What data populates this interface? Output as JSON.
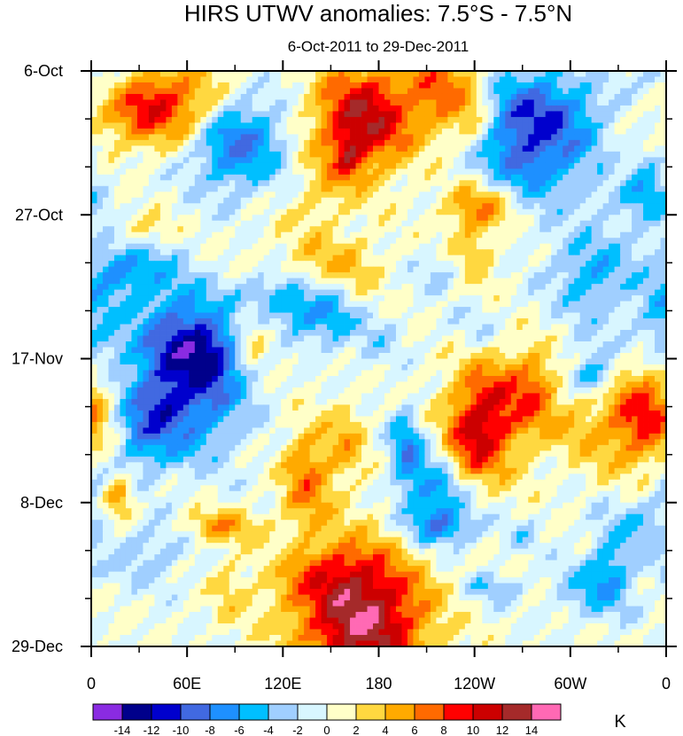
{
  "chart_data": {
    "type": "heatmap",
    "title": "HIRS UTWV anomalies: 7.5°S - 7.5°N",
    "subtitle": "6-Oct-2011 to 29-Dec-2011",
    "xlabel": "",
    "ylabel": "",
    "x_ticks": [
      "0",
      "60E",
      "120E",
      "180",
      "120W",
      "60W",
      "0"
    ],
    "x_tick_degrees": [
      0,
      60,
      120,
      180,
      240,
      300,
      360
    ],
    "y_ticks": [
      "6-Oct",
      "27-Oct",
      "17-Nov",
      "8-Dec",
      "29-Dec"
    ],
    "y_tick_days": [
      0,
      21,
      42,
      63,
      84
    ],
    "xlim": [
      0,
      360
    ],
    "ylim_days": [
      0,
      84
    ],
    "colorbar": {
      "unit": "K",
      "levels": [
        -14,
        -12,
        -10,
        -8,
        -6,
        -4,
        -2,
        0,
        2,
        4,
        6,
        8,
        10,
        12,
        14
      ],
      "level_labels": [
        "-14",
        "-12",
        "-10",
        "-8",
        "-6",
        "-4",
        "-2",
        "0",
        "2",
        "4",
        "6",
        "8",
        "10",
        "12",
        "14"
      ],
      "colors": [
        "#8a2be2",
        "#00008b",
        "#0000cd",
        "#4169e1",
        "#1e90ff",
        "#00bfff",
        "#a0cfff",
        "#d8f6ff",
        "#ffffc8",
        "#ffd840",
        "#ffaa00",
        "#ff6a00",
        "#ff0000",
        "#cc0000",
        "#a52a2a",
        "#ff69b4"
      ]
    },
    "features": [
      {
        "lon": 90,
        "day": 10,
        "amp": -9,
        "label": "negative anomaly west Indian Ocean, early Oct"
      },
      {
        "lon": 44,
        "day": 5,
        "amp": 10,
        "label": "positive anomaly near 40E, early Oct"
      },
      {
        "lon": 170,
        "day": 7,
        "amp": 12,
        "label": "positive anomaly near date line, Oct"
      },
      {
        "lon": 280,
        "day": 8,
        "amp": -11,
        "label": "negative anomaly near 80W, Oct"
      },
      {
        "lon": 55,
        "day": 46,
        "amp": -13,
        "label": "strong negative anomaly 50-70E, late Nov"
      },
      {
        "lon": 250,
        "day": 50,
        "amp": 10,
        "label": "positive anomaly near 110W, late Nov"
      },
      {
        "lon": 170,
        "day": 80,
        "amp": 14,
        "label": "strong positive anomaly near 170E, late Dec"
      },
      {
        "lon": 345,
        "day": 50,
        "amp": 9,
        "label": "positive anomaly near 15W, Nov-Dec"
      }
    ]
  }
}
